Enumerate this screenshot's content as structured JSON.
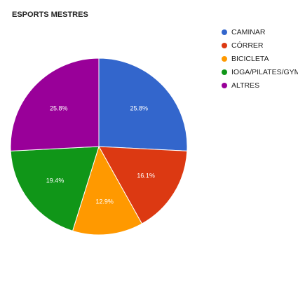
{
  "chart_data": {
    "type": "pie",
    "title": "ESPORTS MESTRES",
    "categories": [
      "CAMINAR",
      "CÓRRER",
      "BICICLETA",
      "IOGA/PILATES/GYM",
      "ALTRES"
    ],
    "values": [
      25.8,
      16.1,
      12.9,
      19.4,
      25.8
    ],
    "value_labels": [
      "25.8%",
      "16.1%",
      "12.9%",
      "19.4%",
      "25.8%"
    ],
    "colors": [
      "#3366cc",
      "#dc3912",
      "#ff9900",
      "#109618",
      "#990099"
    ],
    "legend_position": "right",
    "start_angle": "12 o'clock",
    "direction": "clockwise"
  }
}
